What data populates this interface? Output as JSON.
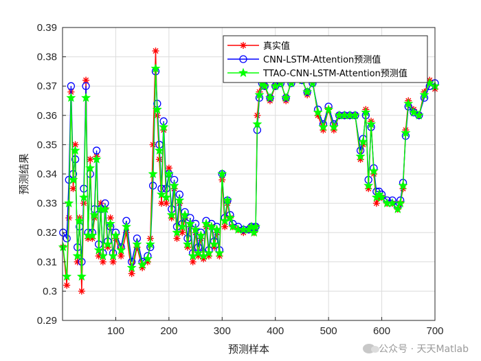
{
  "watermark": "公众号 · 天天Matlab",
  "chart_data": {
    "type": "line",
    "title": "",
    "xlabel": "预测样本",
    "ylabel": "预测结果",
    "xlim": [
      0,
      700
    ],
    "ylim": [
      0.29,
      0.39
    ],
    "xticks": [
      100,
      200,
      300,
      400,
      500,
      600,
      700
    ],
    "yticks": [
      0.29,
      0.3,
      0.31,
      0.32,
      0.33,
      0.34,
      0.35,
      0.36,
      0.37,
      0.38,
      0.39
    ],
    "grid": true,
    "legend_position": "top-right",
    "x": [
      1,
      8,
      12,
      16,
      20,
      24,
      28,
      32,
      36,
      40,
      44,
      48,
      52,
      56,
      60,
      64,
      68,
      72,
      76,
      80,
      85,
      90,
      95,
      100,
      110,
      120,
      130,
      140,
      150,
      160,
      165,
      170,
      175,
      178,
      182,
      186,
      190,
      195,
      200,
      205,
      210,
      215,
      220,
      225,
      230,
      235,
      240,
      245,
      250,
      255,
      260,
      265,
      270,
      275,
      280,
      285,
      290,
      295,
      300,
      305,
      310,
      315,
      320,
      330,
      340,
      350,
      355,
      360,
      363,
      366,
      370,
      375,
      380,
      390,
      400,
      410,
      420,
      430,
      440,
      450,
      460,
      470,
      480,
      490,
      500,
      510,
      520,
      530,
      540,
      550,
      560,
      565,
      570,
      575,
      580,
      585,
      590,
      595,
      600,
      610,
      620,
      630,
      635,
      640,
      645,
      650,
      660,
      670,
      680,
      690,
      700
    ],
    "series": [
      {
        "name": "真实值",
        "color": "#ff0000",
        "marker": "asterisk",
        "values": [
          0.315,
          0.302,
          0.325,
          0.368,
          0.335,
          0.35,
          0.31,
          0.325,
          0.3,
          0.33,
          0.372,
          0.318,
          0.345,
          0.318,
          0.325,
          0.346,
          0.312,
          0.33,
          0.31,
          0.328,
          0.315,
          0.325,
          0.31,
          0.318,
          0.312,
          0.32,
          0.306,
          0.315,
          0.308,
          0.31,
          0.318,
          0.35,
          0.382,
          0.36,
          0.345,
          0.33,
          0.355,
          0.33,
          0.342,
          0.325,
          0.335,
          0.318,
          0.33,
          0.32,
          0.325,
          0.315,
          0.322,
          0.31,
          0.32,
          0.312,
          0.318,
          0.311,
          0.322,
          0.312,
          0.322,
          0.315,
          0.32,
          0.312,
          0.338,
          0.322,
          0.33,
          0.325,
          0.322,
          0.321,
          0.32,
          0.321,
          0.322,
          0.32,
          0.322,
          0.36,
          0.368,
          0.372,
          0.37,
          0.365,
          0.37,
          0.372,
          0.365,
          0.372,
          0.375,
          0.373,
          0.367,
          0.372,
          0.36,
          0.355,
          0.362,
          0.355,
          0.36,
          0.36,
          0.36,
          0.36,
          0.345,
          0.35,
          0.362,
          0.335,
          0.358,
          0.34,
          0.33,
          0.332,
          0.332,
          0.33,
          0.33,
          0.328,
          0.33,
          0.335,
          0.355,
          0.365,
          0.362,
          0.36,
          0.368,
          0.372,
          0.369
        ]
      },
      {
        "name": "CNN-LSTM-Attention预测值",
        "color": "#0000ff",
        "marker": "circle",
        "values": [
          0.32,
          0.318,
          0.338,
          0.37,
          0.34,
          0.345,
          0.315,
          0.322,
          0.31,
          0.335,
          0.37,
          0.32,
          0.34,
          0.32,
          0.328,
          0.348,
          0.316,
          0.328,
          0.313,
          0.33,
          0.317,
          0.322,
          0.313,
          0.32,
          0.315,
          0.324,
          0.31,
          0.318,
          0.31,
          0.312,
          0.315,
          0.336,
          0.375,
          0.364,
          0.35,
          0.335,
          0.358,
          0.335,
          0.34,
          0.328,
          0.338,
          0.322,
          0.333,
          0.323,
          0.327,
          0.318,
          0.325,
          0.313,
          0.323,
          0.315,
          0.32,
          0.313,
          0.324,
          0.314,
          0.323,
          0.317,
          0.322,
          0.314,
          0.34,
          0.325,
          0.331,
          0.326,
          0.323,
          0.322,
          0.321,
          0.321,
          0.322,
          0.321,
          0.322,
          0.355,
          0.366,
          0.371,
          0.37,
          0.366,
          0.37,
          0.371,
          0.366,
          0.371,
          0.373,
          0.372,
          0.368,
          0.371,
          0.362,
          0.357,
          0.363,
          0.357,
          0.36,
          0.36,
          0.36,
          0.36,
          0.348,
          0.352,
          0.36,
          0.338,
          0.356,
          0.342,
          0.334,
          0.334,
          0.333,
          0.331,
          0.331,
          0.329,
          0.331,
          0.337,
          0.353,
          0.363,
          0.361,
          0.36,
          0.366,
          0.37,
          0.371
        ]
      },
      {
        "name": "TTAO-CNN-LSTM-Attention预测值",
        "color": "#00ff00",
        "marker": "star",
        "values": [
          0.315,
          0.305,
          0.33,
          0.366,
          0.338,
          0.348,
          0.312,
          0.324,
          0.305,
          0.332,
          0.366,
          0.319,
          0.342,
          0.319,
          0.326,
          0.345,
          0.314,
          0.328,
          0.312,
          0.328,
          0.316,
          0.323,
          0.312,
          0.319,
          0.314,
          0.322,
          0.308,
          0.316,
          0.309,
          0.311,
          0.316,
          0.34,
          0.376,
          0.362,
          0.348,
          0.333,
          0.356,
          0.332,
          0.34,
          0.326,
          0.336,
          0.32,
          0.331,
          0.322,
          0.326,
          0.316,
          0.323,
          0.312,
          0.321,
          0.313,
          0.319,
          0.312,
          0.323,
          0.313,
          0.322,
          0.316,
          0.321,
          0.313,
          0.34,
          0.324,
          0.331,
          0.325,
          0.322,
          0.321,
          0.321,
          0.321,
          0.322,
          0.32,
          0.322,
          0.357,
          0.367,
          0.371,
          0.37,
          0.366,
          0.37,
          0.371,
          0.366,
          0.371,
          0.374,
          0.372,
          0.368,
          0.371,
          0.361,
          0.356,
          0.362,
          0.356,
          0.36,
          0.36,
          0.36,
          0.36,
          0.346,
          0.351,
          0.361,
          0.336,
          0.357,
          0.341,
          0.332,
          0.333,
          0.332,
          0.33,
          0.33,
          0.328,
          0.33,
          0.336,
          0.354,
          0.364,
          0.361,
          0.36,
          0.367,
          0.371,
          0.37
        ]
      }
    ]
  }
}
